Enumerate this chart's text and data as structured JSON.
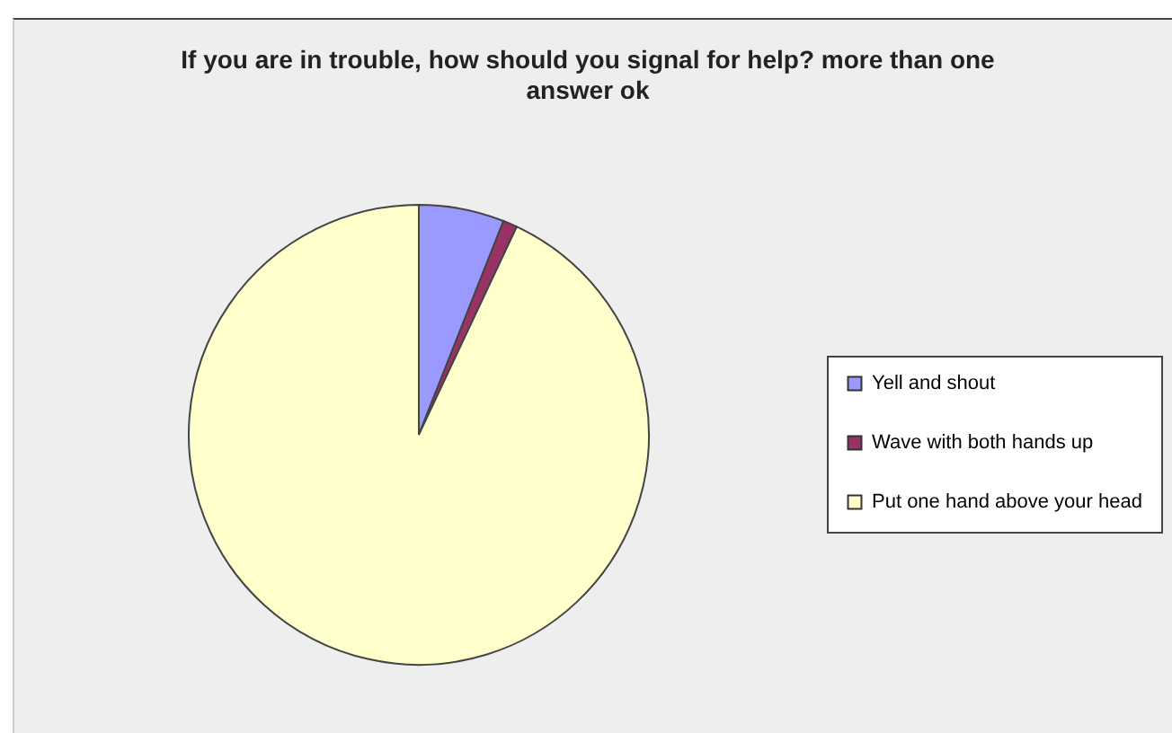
{
  "chart_data": {
    "type": "pie",
    "title": "If you are in trouble, how should you signal for help? more than one answer ok",
    "categories": [
      "Yell and shout",
      "Wave with both hands up",
      "Put one hand above your head"
    ],
    "values": [
      6,
      1,
      93
    ],
    "colors": [
      "#9999ff",
      "#993366",
      "#ffffcc"
    ],
    "legend": "right"
  }
}
